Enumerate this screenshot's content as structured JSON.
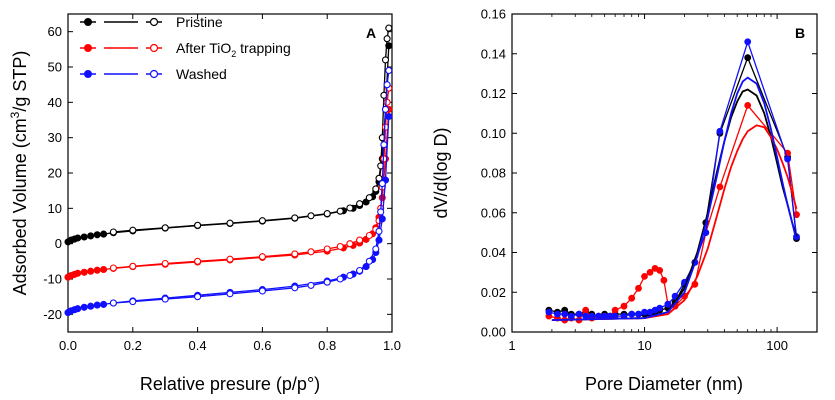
{
  "colors": {
    "pristine": "#000000",
    "after": "#ff0000",
    "washed": "#1010ff",
    "axis": "#000000"
  },
  "chart_data": [
    {
      "type": "scatter",
      "panel": "A",
      "xlabel": "Relative presure (p/p°)",
      "ylabel_parts": {
        "before": "Adsorbed Volume (cm",
        "sup": "3",
        "after": "/g STP)"
      },
      "xlim": [
        0,
        1.0
      ],
      "ylim": [
        -25,
        65
      ],
      "xticks": [
        0.0,
        0.2,
        0.4,
        0.6,
        0.8,
        1.0
      ],
      "xtick_labels": [
        "0.0",
        "0.2",
        "0.4",
        "0.6",
        "0.8",
        "1.0"
      ],
      "yticks": [
        -20,
        -10,
        0,
        10,
        20,
        30,
        40,
        50,
        60
      ],
      "ytick_labels": [
        "-20",
        "-10",
        "0",
        "10",
        "20",
        "30",
        "40",
        "50",
        "60"
      ],
      "legend": {
        "position": "top-left",
        "entries": [
          {
            "key": "pristine",
            "label": "Pristine"
          },
          {
            "key": "after",
            "label_before": "After TiO",
            "label_sub": "2",
            "label_after": " trapping"
          },
          {
            "key": "washed",
            "label": "Washed"
          }
        ]
      },
      "series": [
        {
          "name": "Pristine",
          "key": "pristine",
          "branch": "adsorption",
          "x": [
            0.0,
            0.01,
            0.02,
            0.03,
            0.05,
            0.07,
            0.09,
            0.11,
            0.14,
            0.2,
            0.3,
            0.4,
            0.5,
            0.6,
            0.7,
            0.8,
            0.85,
            0.88,
            0.9,
            0.92,
            0.94,
            0.95,
            0.96,
            0.97,
            0.98,
            0.99
          ],
          "y": [
            0.5,
            1.0,
            1.3,
            1.6,
            1.9,
            2.2,
            2.5,
            2.7,
            3.1,
            3.6,
            4.4,
            5.1,
            5.7,
            6.4,
            7.2,
            8.4,
            9.3,
            10.0,
            10.8,
            11.8,
            13.3,
            14.8,
            17.5,
            24.0,
            38.0,
            56.0
          ]
        },
        {
          "name": "Pristine",
          "key": "pristine",
          "branch": "desorption",
          "x": [
            0.99,
            0.985,
            0.98,
            0.975,
            0.97,
            0.965,
            0.96,
            0.95,
            0.93,
            0.9,
            0.87,
            0.84,
            0.8,
            0.75,
            0.7,
            0.6,
            0.5,
            0.4,
            0.3,
            0.2,
            0.14
          ],
          "y": [
            61.0,
            58.0,
            52.0,
            42.0,
            30.0,
            22.0,
            18.5,
            15.5,
            13.0,
            11.3,
            10.1,
            9.2,
            8.5,
            7.9,
            7.3,
            6.5,
            5.8,
            5.2,
            4.5,
            3.8,
            3.3
          ]
        },
        {
          "name": "After TiO2 trapping",
          "key": "after",
          "branch": "adsorption",
          "x": [
            0.0,
            0.01,
            0.02,
            0.03,
            0.05,
            0.07,
            0.09,
            0.11,
            0.14,
            0.2,
            0.3,
            0.4,
            0.5,
            0.6,
            0.7,
            0.8,
            0.85,
            0.88,
            0.9,
            0.92,
            0.94,
            0.95,
            0.96,
            0.97,
            0.98,
            0.99
          ],
          "y": [
            -9.5,
            -9.0,
            -8.7,
            -8.4,
            -8.1,
            -7.8,
            -7.5,
            -7.3,
            -7.0,
            -6.5,
            -5.8,
            -5.2,
            -4.6,
            -3.9,
            -3.2,
            -2.1,
            -1.2,
            -0.5,
            0.2,
            1.2,
            2.8,
            4.5,
            7.5,
            13.0,
            24.0,
            38.0
          ]
        },
        {
          "name": "After TiO2 trapping",
          "key": "after",
          "branch": "desorption",
          "x": [
            0.99,
            0.985,
            0.98,
            0.975,
            0.97,
            0.965,
            0.96,
            0.95,
            0.93,
            0.9,
            0.87,
            0.84,
            0.8,
            0.75,
            0.7,
            0.6,
            0.5,
            0.4,
            0.3,
            0.2,
            0.14
          ],
          "y": [
            44.0,
            40.0,
            33.0,
            24.0,
            16.0,
            10.0,
            6.5,
            4.0,
            2.3,
            1.0,
            0.0,
            -0.8,
            -1.5,
            -2.3,
            -2.9,
            -3.7,
            -4.4,
            -5.0,
            -5.6,
            -6.4,
            -6.9
          ]
        },
        {
          "name": "Washed",
          "key": "washed",
          "branch": "adsorption",
          "x": [
            0.0,
            0.01,
            0.02,
            0.03,
            0.05,
            0.07,
            0.09,
            0.11,
            0.14,
            0.2,
            0.3,
            0.4,
            0.5,
            0.6,
            0.7,
            0.8,
            0.85,
            0.88,
            0.9,
            0.92,
            0.94,
            0.95,
            0.96,
            0.97,
            0.98,
            0.99
          ],
          "y": [
            -19.5,
            -19.0,
            -18.7,
            -18.4,
            -18.0,
            -17.7,
            -17.4,
            -17.2,
            -16.8,
            -16.2,
            -15.4,
            -14.6,
            -13.8,
            -13.0,
            -12.0,
            -10.6,
            -9.5,
            -8.6,
            -7.8,
            -6.5,
            -4.5,
            -2.5,
            1.0,
            7.0,
            18.0,
            36.0
          ]
        },
        {
          "name": "Washed",
          "key": "washed",
          "branch": "desorption",
          "x": [
            0.99,
            0.985,
            0.98,
            0.975,
            0.97,
            0.965,
            0.96,
            0.95,
            0.93,
            0.9,
            0.87,
            0.84,
            0.8,
            0.75,
            0.7,
            0.6,
            0.5,
            0.4,
            0.3,
            0.2,
            0.14
          ],
          "y": [
            49.0,
            45.0,
            38.0,
            28.0,
            17.0,
            9.0,
            3.5,
            -1.5,
            -5.0,
            -7.6,
            -9.0,
            -10.0,
            -10.9,
            -11.8,
            -12.5,
            -13.4,
            -14.2,
            -15.0,
            -15.7,
            -16.4,
            -16.8
          ]
        }
      ]
    },
    {
      "type": "scatter",
      "panel": "B",
      "xlabel": "Pore Diameter (nm)",
      "ylabel": "dV/d(log D)",
      "xscale": "log",
      "xlim": [
        1,
        200
      ],
      "ylim": [
        0.0,
        0.16
      ],
      "xticks": [
        1,
        10,
        100
      ],
      "xtick_labels": [
        "1",
        "10",
        "100"
      ],
      "yticks": [
        0.0,
        0.02,
        0.04,
        0.06,
        0.08,
        0.1,
        0.12,
        0.14,
        0.16
      ],
      "ytick_labels": [
        "0.00",
        "0.02",
        "0.04",
        "0.06",
        "0.08",
        "0.10",
        "0.12",
        "0.14",
        "0.16"
      ],
      "series": [
        {
          "name": "Pristine",
          "key": "pristine",
          "x": [
            1.9,
            2.2,
            2.5,
            2.8,
            3.2,
            3.6,
            4.0,
            4.5,
            5.0,
            5.5,
            6.0,
            7.0,
            8.0,
            9.0,
            10.0,
            11.0,
            12.0,
            13.0,
            15.0,
            17.0,
            20.0,
            24.0,
            29.0,
            37.0,
            60.0,
            120.0,
            140.0
          ],
          "y": [
            0.011,
            0.01,
            0.011,
            0.009,
            0.009,
            0.01,
            0.009,
            0.008,
            0.009,
            0.008,
            0.009,
            0.009,
            0.009,
            0.009,
            0.009,
            0.009,
            0.01,
            0.011,
            0.012,
            0.015,
            0.024,
            0.035,
            0.055,
            0.1,
            0.138,
            0.088,
            0.047
          ]
        },
        {
          "name": "After TiO2 trapping",
          "key": "after",
          "x": [
            1.9,
            2.2,
            2.5,
            2.8,
            3.2,
            3.6,
            4.0,
            4.5,
            5.0,
            5.5,
            6.0,
            7.0,
            8.0,
            9.0,
            10.0,
            11.0,
            12.0,
            13.0,
            14.0,
            15.0,
            17.0,
            20.0,
            24.0,
            29.0,
            37.0,
            60.0,
            120.0,
            140.0
          ],
          "y": [
            0.008,
            0.007,
            0.006,
            0.007,
            0.006,
            0.011,
            0.007,
            0.008,
            0.008,
            0.008,
            0.011,
            0.013,
            0.017,
            0.022,
            0.028,
            0.03,
            0.032,
            0.031,
            0.026,
            0.014,
            0.013,
            0.018,
            0.024,
            0.05,
            0.073,
            0.114,
            0.09,
            0.059
          ]
        },
        {
          "name": "Washed",
          "key": "washed",
          "x": [
            1.9,
            2.2,
            2.5,
            2.8,
            3.2,
            3.6,
            4.0,
            4.5,
            5.0,
            5.5,
            6.0,
            7.0,
            8.0,
            9.0,
            10.0,
            11.0,
            12.0,
            13.0,
            15.0,
            17.0,
            20.0,
            24.0,
            29.0,
            37.0,
            60.0,
            120.0,
            140.0
          ],
          "y": [
            0.01,
            0.009,
            0.009,
            0.008,
            0.009,
            0.008,
            0.008,
            0.008,
            0.008,
            0.008,
            0.008,
            0.008,
            0.009,
            0.009,
            0.01,
            0.01,
            0.011,
            0.012,
            0.014,
            0.018,
            0.025,
            0.035,
            0.05,
            0.101,
            0.146,
            0.087,
            0.048
          ]
        }
      ],
      "fits": [
        {
          "name": "Pristine fit",
          "key": "pristine",
          "x": [
            2,
            10,
            15,
            20,
            25,
            30,
            35,
            40,
            45,
            50,
            55,
            60,
            70,
            80,
            90,
            100,
            110,
            120,
            130,
            140
          ],
          "y": [
            0.006,
            0.007,
            0.01,
            0.022,
            0.04,
            0.06,
            0.08,
            0.096,
            0.108,
            0.116,
            0.121,
            0.122,
            0.119,
            0.11,
            0.098,
            0.085,
            0.073,
            0.064,
            0.055,
            0.048
          ]
        },
        {
          "name": "After TiO2 trapping fit",
          "key": "after",
          "x": [
            2,
            10,
            15,
            20,
            25,
            30,
            35,
            40,
            45,
            50,
            55,
            60,
            70,
            80,
            90,
            100,
            110,
            120,
            130,
            140
          ],
          "y": [
            0.006,
            0.007,
            0.009,
            0.016,
            0.028,
            0.042,
            0.058,
            0.072,
            0.083,
            0.091,
            0.097,
            0.101,
            0.104,
            0.103,
            0.098,
            0.092,
            0.085,
            0.078,
            0.07,
            0.062
          ]
        },
        {
          "name": "Washed fit",
          "key": "washed",
          "x": [
            2,
            10,
            15,
            20,
            25,
            30,
            35,
            40,
            45,
            50,
            55,
            60,
            70,
            80,
            90,
            100,
            110,
            120,
            130,
            140
          ],
          "y": [
            0.006,
            0.007,
            0.01,
            0.02,
            0.038,
            0.058,
            0.078,
            0.096,
            0.11,
            0.12,
            0.126,
            0.128,
            0.125,
            0.115,
            0.102,
            0.088,
            0.075,
            0.064,
            0.055,
            0.046
          ]
        }
      ]
    }
  ]
}
